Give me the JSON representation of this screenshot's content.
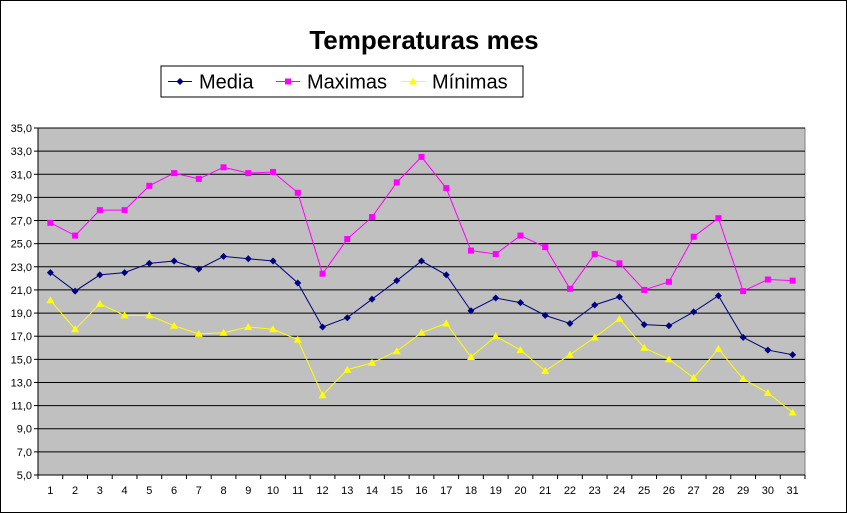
{
  "chart_data": {
    "type": "line",
    "title": "Temperaturas mes",
    "xlabel": "",
    "ylabel": "",
    "ylim": [
      5.0,
      35.0
    ],
    "ytick_step": 2.0,
    "yticks": [
      "35,0",
      "33,0",
      "31,0",
      "29,0",
      "27,0",
      "25,0",
      "23,0",
      "21,0",
      "19,0",
      "17,0",
      "15,0",
      "13,0",
      "11,0",
      "9,0",
      "7,0",
      "5,0"
    ],
    "categories": [
      "1",
      "2",
      "3",
      "4",
      "5",
      "6",
      "7",
      "8",
      "9",
      "10",
      "11",
      "12",
      "13",
      "14",
      "15",
      "16",
      "17",
      "18",
      "19",
      "20",
      "21",
      "22",
      "23",
      "24",
      "25",
      "26",
      "27",
      "28",
      "29",
      "30",
      "31"
    ],
    "grid": true,
    "legend_position": "top-center",
    "plot_background": "#c0c0c0",
    "series": [
      {
        "name": "Media",
        "color": "#000080",
        "marker": "diamond",
        "values": [
          22.5,
          20.9,
          22.3,
          22.5,
          23.3,
          23.5,
          22.8,
          23.9,
          23.7,
          23.5,
          21.6,
          17.8,
          18.6,
          20.2,
          21.8,
          23.5,
          22.3,
          19.2,
          20.3,
          19.9,
          18.8,
          18.1,
          19.7,
          20.4,
          18.0,
          17.9,
          19.1,
          20.5,
          16.9,
          15.8,
          15.4
        ]
      },
      {
        "name": "Maximas",
        "color": "#ff00ff",
        "marker": "square",
        "values": [
          26.8,
          25.7,
          27.9,
          27.9,
          30.0,
          31.1,
          30.6,
          31.6,
          31.1,
          31.2,
          29.4,
          22.4,
          25.4,
          27.3,
          30.3,
          32.5,
          29.8,
          24.4,
          24.1,
          25.7,
          24.7,
          21.1,
          24.1,
          23.3,
          21.0,
          21.7,
          25.6,
          27.2,
          20.9,
          21.9,
          21.8
        ]
      },
      {
        "name": "Mínimas",
        "color": "#ffff00",
        "marker": "triangle",
        "values": [
          20.1,
          17.6,
          19.8,
          18.8,
          18.8,
          17.9,
          17.2,
          17.3,
          17.8,
          17.6,
          16.7,
          11.9,
          14.1,
          14.7,
          15.7,
          17.3,
          18.1,
          15.2,
          17.0,
          15.8,
          14.0,
          15.4,
          16.9,
          18.5,
          16.0,
          15.0,
          13.4,
          15.9,
          13.3,
          12.1,
          10.4
        ]
      }
    ]
  }
}
